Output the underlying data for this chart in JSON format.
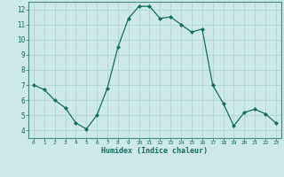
{
  "x": [
    0,
    1,
    2,
    3,
    4,
    5,
    6,
    7,
    8,
    9,
    10,
    11,
    12,
    13,
    14,
    15,
    16,
    17,
    18,
    19,
    20,
    21,
    22,
    23
  ],
  "y": [
    7.0,
    6.7,
    6.0,
    5.5,
    4.5,
    4.1,
    5.0,
    6.8,
    9.5,
    11.4,
    12.2,
    12.2,
    11.4,
    11.5,
    11.0,
    10.5,
    10.7,
    7.0,
    5.8,
    4.3,
    5.2,
    5.4,
    5.1,
    4.5
  ],
  "xlabel": "Humidex (Indice chaleur)",
  "xlim": [
    -0.5,
    23.5
  ],
  "ylim": [
    3.5,
    12.5
  ],
  "xticks": [
    0,
    1,
    2,
    3,
    4,
    5,
    6,
    7,
    8,
    9,
    10,
    11,
    12,
    13,
    14,
    15,
    16,
    17,
    18,
    19,
    20,
    21,
    22,
    23
  ],
  "yticks": [
    4,
    5,
    6,
    7,
    8,
    9,
    10,
    11,
    12
  ],
  "line_color": "#1a6b5e",
  "marker_color": "#1a6b5e",
  "bg_color": "#cce8e8",
  "grid_color": "#aad0d0",
  "spine_color": "#4a8a7e",
  "label_color": "#1a6b5e"
}
